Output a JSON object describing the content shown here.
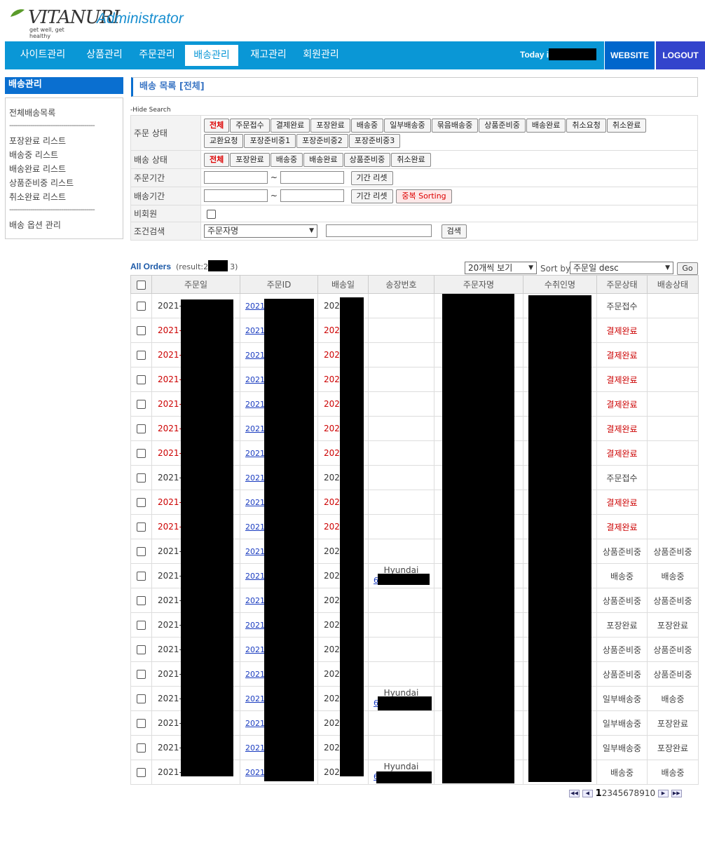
{
  "header": {
    "logo_text": "VITANURI",
    "logo_tagline": "get well, get healthy",
    "admin_title": "Administrator"
  },
  "nav": {
    "items": [
      {
        "label": "사이트관리",
        "active": false
      },
      {
        "label": "상품관리",
        "active": false
      },
      {
        "label": "주문관리",
        "active": false
      },
      {
        "label": "배송관리",
        "active": true
      },
      {
        "label": "재고관리",
        "active": false
      },
      {
        "label": "회원관리",
        "active": false
      }
    ],
    "today_label": "Today is",
    "website_label": "WEBSITE",
    "logout_label": "LOGOUT"
  },
  "sidebar": {
    "title": "배송관리",
    "links": [
      "전체배송목록",
      "포장완료 리스트",
      "배송중 리스트",
      "배송완료 리스트",
      "상품준비중 리스트",
      "취소완료 리스트",
      "배송 옵션 관리"
    ],
    "separator": "-----------------------------------------"
  },
  "main": {
    "title": "배송 목록 [전체]",
    "hide_search": "-Hide Search"
  },
  "search": {
    "order_status_label": "주문 상태",
    "order_status_buttons": [
      "전체",
      "주문접수",
      "결제완료",
      "포장완료",
      "배송중",
      "일부배송중",
      "묶음배송중",
      "상품준비중",
      "배송완료",
      "취소요청",
      "취소완료",
      "교환요청",
      "포장준비중1",
      "포장준비중2",
      "포장준비중3"
    ],
    "delivery_status_label": "배송 상태",
    "delivery_status_buttons": [
      "전체",
      "포장완료",
      "배송중",
      "배송완료",
      "상품준비중",
      "취소완료"
    ],
    "order_period_label": "주문기간",
    "delivery_period_label": "배송기간",
    "tilde": "~",
    "reset_label": "기간 리셋",
    "dup_sort_label": "중복 Sorting",
    "non_member_label": "비회원",
    "condition_label": "조건검색",
    "condition_value": "주문자명",
    "search_button": "검색"
  },
  "orders": {
    "title": "All Orders",
    "result_prefix": "(result:24",
    "result_suffix": "3)",
    "per_page": "20개씩 보기",
    "sort_label": "Sort by",
    "sort_value": "주문일 desc",
    "go_label": "Go",
    "columns": [
      "주문일",
      "주문ID",
      "배송일",
      "송장번호",
      "주문자명",
      "수취인명",
      "주문상태",
      "배송상태"
    ],
    "rows": [
      {
        "date": "2021-0",
        "id": "2021(",
        "ship": "2021",
        "carrier": "",
        "track": "",
        "status": "주문접수",
        "dstatus": "",
        "red": false
      },
      {
        "date": "2021-0",
        "id": "2021(",
        "ship": "2021",
        "carrier": "",
        "track": "",
        "status": "결제완료",
        "dstatus": "",
        "red": true
      },
      {
        "date": "2021-0",
        "id": "2021(",
        "ship": "2021",
        "carrier": "",
        "track": "",
        "status": "결제완료",
        "dstatus": "",
        "red": true
      },
      {
        "date": "2021-0",
        "id": "2021(",
        "ship": "2021",
        "carrier": "",
        "track": "",
        "status": "결제완료",
        "dstatus": "",
        "red": true
      },
      {
        "date": "2021-0",
        "id": "2021(",
        "ship": "2021",
        "carrier": "",
        "track": "",
        "status": "결제완료",
        "dstatus": "",
        "red": true
      },
      {
        "date": "2021-0",
        "id": "2021(",
        "ship": "2021",
        "carrier": "",
        "track": "",
        "status": "결제완료",
        "dstatus": "",
        "red": true
      },
      {
        "date": "2021-0",
        "id": "2021(",
        "ship": "2021",
        "carrier": "",
        "track": "",
        "status": "결제완료",
        "dstatus": "",
        "red": true
      },
      {
        "date": "2021-0",
        "id": "2021(",
        "ship": "2021",
        "carrier": "",
        "track": "",
        "status": "주문접수",
        "dstatus": "",
        "red": false
      },
      {
        "date": "2021-0",
        "id": "2021(",
        "ship": "2021",
        "carrier": "",
        "track": "",
        "status": "결제완료",
        "dstatus": "",
        "red": true
      },
      {
        "date": "2021-0",
        "id": "2021(",
        "ship": "2021",
        "carrier": "",
        "track": "",
        "status": "결제완료",
        "dstatus": "",
        "red": true
      },
      {
        "date": "2021-0",
        "id": "2021(",
        "ship": "2021",
        "carrier": "",
        "track": "",
        "status": "상품준비중",
        "dstatus": "상품준비중",
        "red": false
      },
      {
        "date": "2021-0",
        "id": "2021(",
        "ship": "2021",
        "carrier": "Hyundai",
        "track": "6",
        "status": "배송중",
        "dstatus": "배송중",
        "red": false
      },
      {
        "date": "2021-0",
        "id": "2021(",
        "ship": "2021",
        "carrier": "",
        "track": "",
        "status": "상품준비중",
        "dstatus": "상품준비중",
        "red": false
      },
      {
        "date": "2021-0",
        "id": "2021(",
        "ship": "2021",
        "carrier": "",
        "track": "",
        "status": "포장완료",
        "dstatus": "포장완료",
        "red": false
      },
      {
        "date": "2021-0",
        "id": "2021(",
        "ship": "2021",
        "carrier": "",
        "track": "",
        "status": "상품준비중",
        "dstatus": "상품준비중",
        "red": false
      },
      {
        "date": "2021-0",
        "id": "2021(",
        "ship": "2021",
        "carrier": "",
        "track": "",
        "status": "상품준비중",
        "dstatus": "상품준비중",
        "red": false
      },
      {
        "date": "2021-0",
        "id": "2021(",
        "ship": "2021",
        "carrier": "Hyundai",
        "track": "6",
        "status": "일부배송중",
        "dstatus": "배송중",
        "red": false
      },
      {
        "date": "2021-0",
        "id": "2021(",
        "ship": "2021",
        "carrier": "",
        "track": "",
        "status": "일부배송중",
        "dstatus": "포장완료",
        "red": false
      },
      {
        "date": "2021-0",
        "id": "2021(",
        "ship": "2021",
        "carrier": "",
        "track": "",
        "status": "일부배송중",
        "dstatus": "포장완료",
        "red": false
      },
      {
        "date": "2021-0",
        "id": "2021(",
        "ship": "2021",
        "carrier": "Hyundai",
        "track": "6",
        "status": "배송중",
        "dstatus": "배송중",
        "red": false
      }
    ]
  },
  "pager": {
    "pages": [
      "1",
      "2",
      "3",
      "4",
      "5",
      "6",
      "7",
      "8",
      "9",
      "10"
    ],
    "current": "1",
    "first_icon": "first-page-icon",
    "prev_icon": "prev-page-icon",
    "next_icon": "next-page-icon",
    "last_icon": "last-page-icon"
  },
  "colors": {
    "nav_bg": "#0a97d6",
    "website_bg": "#0066cc",
    "logout_bg": "#3344cc",
    "sidebar_head_bg": "#0a6fd0",
    "alert_red": "#cc0000"
  }
}
